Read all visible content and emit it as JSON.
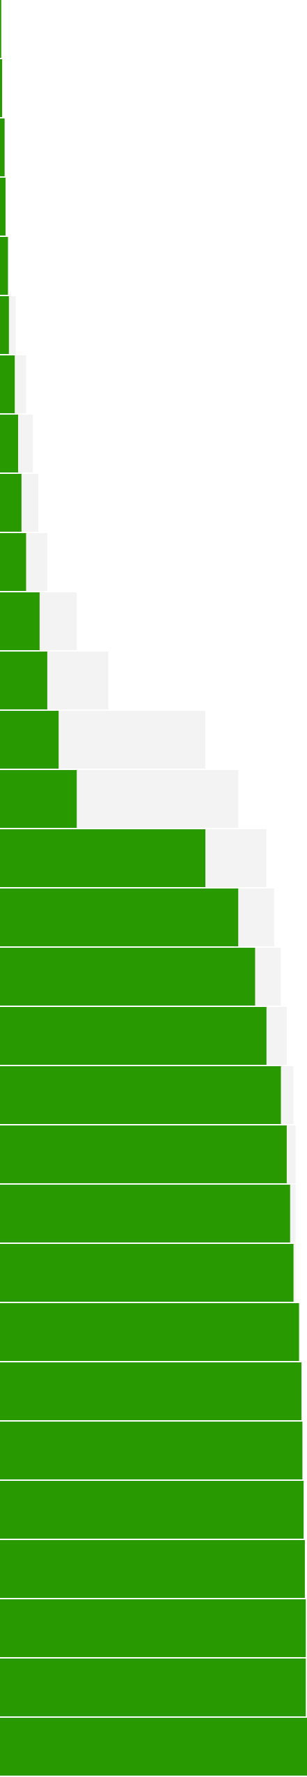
{
  "chart_data": {
    "type": "bar",
    "orientation": "horizontal",
    "xlim": [
      0,
      100
    ],
    "series": [
      {
        "color": "#f3f3f3",
        "values": [
          0.4,
          0.7,
          1.5,
          1.8,
          2.6,
          5.1,
          8.5,
          10.7,
          12.5,
          15.4,
          25,
          35.3,
          66.9,
          77.6,
          86.8,
          89.3,
          91.5,
          93.4,
          95.6,
          96.3,
          96.3,
          96.3,
          97.8,
          98.2,
          98.5,
          98.9,
          99.3,
          99.6,
          99.6,
          100
        ]
      },
      {
        "color": "#289a00",
        "values": [
          0.4,
          0.7,
          1.5,
          1.8,
          2.6,
          2.9,
          4.8,
          5.9,
          7,
          8.5,
          12.9,
          15.4,
          19.1,
          25,
          66.9,
          77.6,
          83.1,
          86.8,
          91.5,
          93.4,
          94.5,
          95.6,
          97.4,
          98.2,
          98.5,
          98.9,
          99.3,
          99.6,
          99.6,
          100
        ]
      }
    ]
  }
}
